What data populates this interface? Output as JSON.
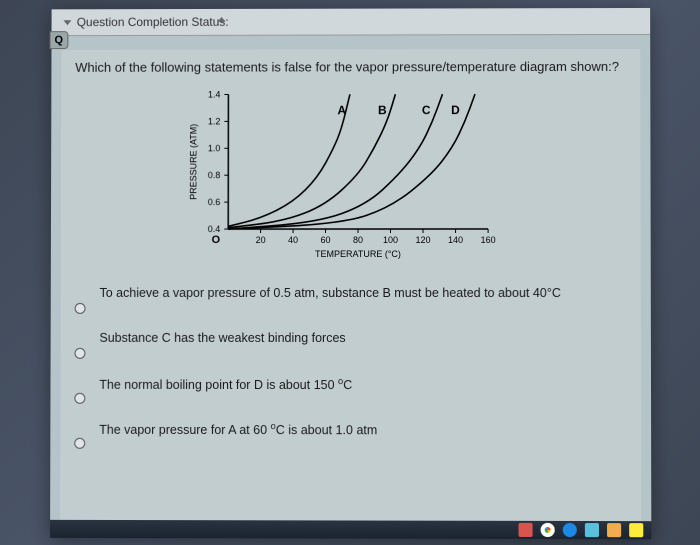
{
  "header": {
    "title": "Question Completion Status:",
    "tab_label": "Q"
  },
  "question": {
    "text": "Which of the following statements is false for the vapor pressure/temperature diagram shown:?"
  },
  "chart": {
    "type": "line",
    "xlabel": "TEMPERATURE (°C)",
    "ylabel": "PRESSURE (ATM)",
    "xlim": [
      0,
      160
    ],
    "ylim": [
      0.4,
      1.4
    ],
    "xticks": [
      20,
      40,
      60,
      80,
      100,
      120,
      140,
      160
    ],
    "yticks": [
      0.4,
      0.6,
      0.8,
      1.0,
      1.2,
      1.4
    ],
    "xtick_labels": [
      "20",
      "40",
      "60",
      "80",
      "100",
      "120",
      "140",
      "160"
    ],
    "ytick_labels": [
      "0.4",
      "0.6",
      "0.8",
      "1.0",
      "1.2",
      "1.4"
    ],
    "series": [
      {
        "label": "A",
        "label_x": 70,
        "points": [
          [
            0,
            0.42
          ],
          [
            20,
            0.48
          ],
          [
            40,
            0.6
          ],
          [
            55,
            0.78
          ],
          [
            65,
            1.0
          ],
          [
            70,
            1.15
          ],
          [
            75,
            1.4
          ]
        ]
      },
      {
        "label": "B",
        "label_x": 95,
        "points": [
          [
            0,
            0.41
          ],
          [
            35,
            0.46
          ],
          [
            60,
            0.58
          ],
          [
            80,
            0.8
          ],
          [
            90,
            1.0
          ],
          [
            98,
            1.2
          ],
          [
            103,
            1.4
          ]
        ]
      },
      {
        "label": "C",
        "label_x": 122,
        "points": [
          [
            0,
            0.4
          ],
          [
            55,
            0.45
          ],
          [
            85,
            0.58
          ],
          [
            105,
            0.8
          ],
          [
            118,
            1.0
          ],
          [
            126,
            1.2
          ],
          [
            132,
            1.4
          ]
        ]
      },
      {
        "label": "D",
        "label_x": 140,
        "points": [
          [
            0,
            0.4
          ],
          [
            70,
            0.44
          ],
          [
            100,
            0.56
          ],
          [
            125,
            0.8
          ],
          [
            138,
            1.0
          ],
          [
            146,
            1.2
          ],
          [
            152,
            1.4
          ]
        ]
      }
    ],
    "line_color": "#000000",
    "line_width": 1.6,
    "axis_color": "#000000",
    "tick_fontsize": 9,
    "label_fontsize": 9,
    "series_label_fontsize": 12,
    "origin_label": "O"
  },
  "options": [
    {
      "text": "To achieve a vapor pressure of 0.5 atm, substance B must be heated to about 40°C"
    },
    {
      "text": "Substance C has the weakest binding forces"
    },
    {
      "html": "The normal boiling point for D is about 150 <span class='sup'>o</span>C"
    },
    {
      "html": "The vapor pressure for A at 60 <span class='sup'>o</span>C is about 1.0 atm"
    }
  ],
  "taskbar": {
    "icons": [
      {
        "color": "#d9534f",
        "name": "ppt-icon"
      },
      {
        "color": "#ffffff",
        "name": "chrome-icon",
        "ring": true
      },
      {
        "color": "#1e88e5",
        "name": "edge-icon",
        "round": true
      },
      {
        "color": "#5bc0de",
        "name": "mail-icon"
      },
      {
        "color": "#f0ad4e",
        "name": "folder-icon"
      },
      {
        "color": "#ffeb3b",
        "name": "store-icon"
      }
    ]
  }
}
